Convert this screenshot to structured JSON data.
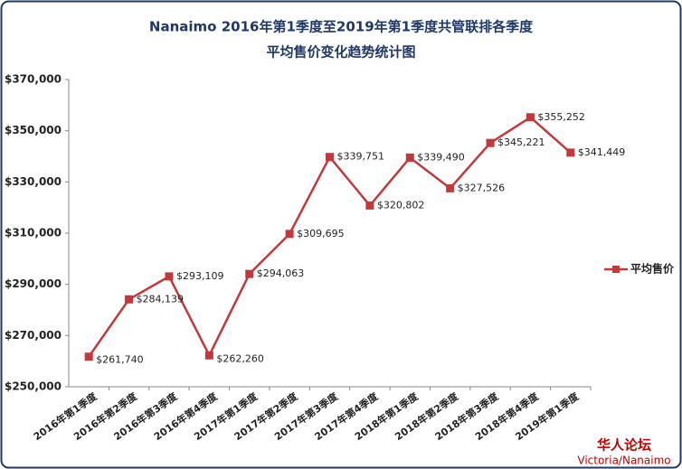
{
  "chart_data": {
    "type": "line",
    "title": "Nanaimo 2016年第1季度至2019年第1季度共管联排各季度",
    "subtitle": "平均售价变化趋势统计图",
    "categories": [
      "2016年第1季度",
      "2016年第2季度",
      "2016年第3季度",
      "2016年第4季度",
      "2017年第1季度",
      "2017年第2季度",
      "2017年第3季度",
      "2017年第4季度",
      "2018年第1季度",
      "2018年第2季度",
      "2018年第3季度",
      "2018年第4季度",
      "2019年第1季度"
    ],
    "series": [
      {
        "name": "平均售价",
        "color": "#c0393b",
        "values": [
          261740,
          284139,
          293109,
          262260,
          294063,
          309695,
          339751,
          320802,
          339490,
          327526,
          345221,
          355252,
          341449
        ],
        "value_labels": [
          "$261,740",
          "$284,139",
          "$293,109",
          "$262,260",
          "$294,063",
          "$309,695",
          "$339,751",
          "$320,802",
          "$339,490",
          "$327,526",
          "$345,221",
          "$355,252",
          "$341,449"
        ]
      }
    ],
    "ylim": [
      250000,
      370000
    ],
    "yticks": [
      {
        "value": 250000,
        "label": "$250,000"
      },
      {
        "value": 270000,
        "label": "$270,000"
      },
      {
        "value": 290000,
        "label": "$290,000"
      },
      {
        "value": 310000,
        "label": "$310,000"
      },
      {
        "value": 330000,
        "label": "$330,000"
      },
      {
        "value": 350000,
        "label": "$350,000"
      },
      {
        "value": 370000,
        "label": "$370,000"
      }
    ],
    "legend": "right",
    "source": {
      "site": "华人论坛",
      "region": "Victoria/Nanaimo"
    }
  }
}
